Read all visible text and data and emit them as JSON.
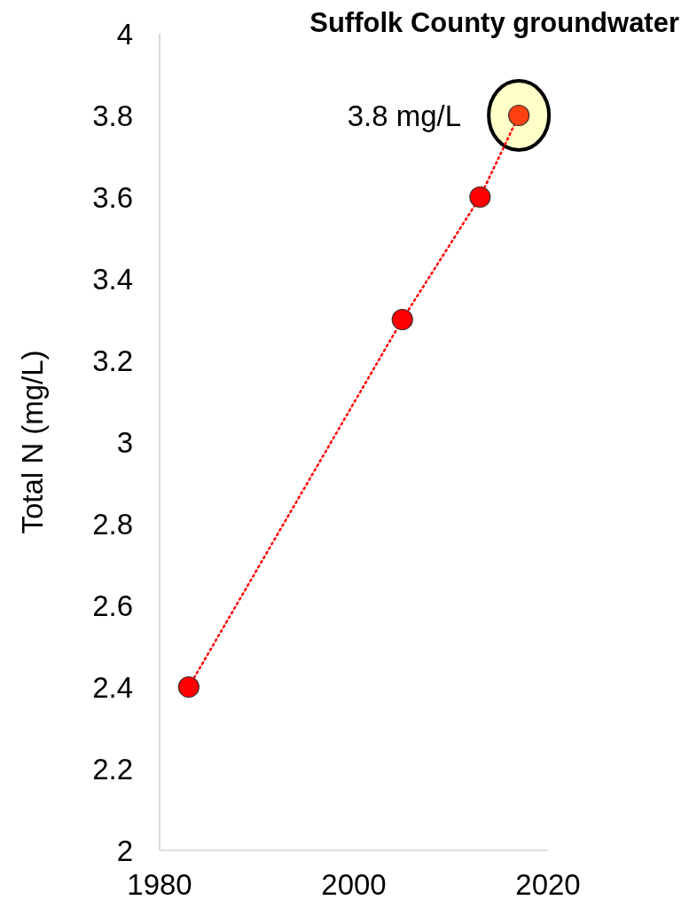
{
  "chart_data": {
    "type": "line",
    "title": "Suffolk County groundwater",
    "ylabel": "Total N (mg/L)",
    "x": [
      1983,
      2005,
      2013,
      2017
    ],
    "series": [
      {
        "color": "#ff0000",
        "colors": [
          "#ff0000",
          "#ff0000",
          "#ff0000",
          "#ff4010"
        ],
        "values": [
          2.4,
          3.3,
          3.6,
          3.8
        ]
      }
    ],
    "xlim": [
      1980,
      2020
    ],
    "xticks": [
      1980,
      2000,
      2020
    ],
    "ylim": [
      2,
      4
    ],
    "yticks": [
      2,
      2.2,
      2.4,
      2.6,
      2.8,
      3,
      3.2,
      3.4,
      3.6,
      3.8,
      4
    ],
    "grid": false,
    "marker": "circle",
    "line_style": "dotted",
    "annotations": [
      {
        "text": "3.8 mg/L",
        "x": 2017,
        "y": 3.8
      }
    ]
  }
}
